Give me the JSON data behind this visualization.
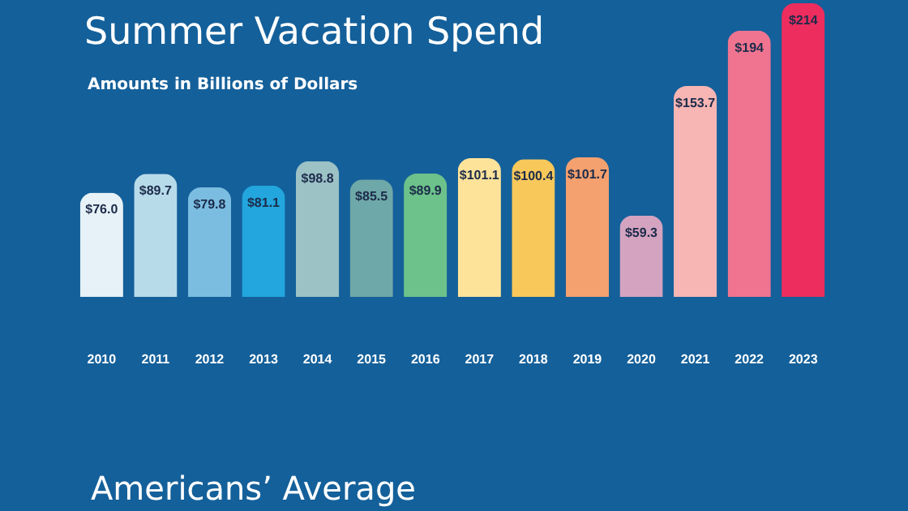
{
  "chart_data": {
    "type": "bar",
    "title": "Summer Vacation Spend",
    "subtitle": "Amounts in Billions of Dollars",
    "categories": [
      "2010",
      "2011",
      "2012",
      "2013",
      "2014",
      "2015",
      "2016",
      "2017",
      "2018",
      "2019",
      "2020",
      "2021",
      "2022",
      "2023"
    ],
    "values": [
      76.0,
      89.7,
      79.8,
      81.1,
      98.8,
      85.5,
      89.9,
      101.1,
      100.4,
      101.7,
      59.3,
      153.7,
      194,
      214
    ],
    "value_labels": [
      "$76.0",
      "$89.7",
      "$79.8",
      "$81.1",
      "$98.8",
      "$85.5",
      "$89.9",
      "$101.1",
      "$100.4",
      "$101.7",
      "$59.3",
      "$153.7",
      "$194",
      "$214"
    ],
    "colors": [
      "#e6f2f7",
      "#b8dbea",
      "#7bbde0",
      "#22a6dd",
      "#9cc2c6",
      "#6fa8a8",
      "#6cc28a",
      "#fde39a",
      "#f9c85a",
      "#f4a06f",
      "#d4a3c0",
      "#f7b5b3",
      "#f07490",
      "#ec2d5e"
    ],
    "annotations": [
      "Americans’ Average"
    ]
  }
}
